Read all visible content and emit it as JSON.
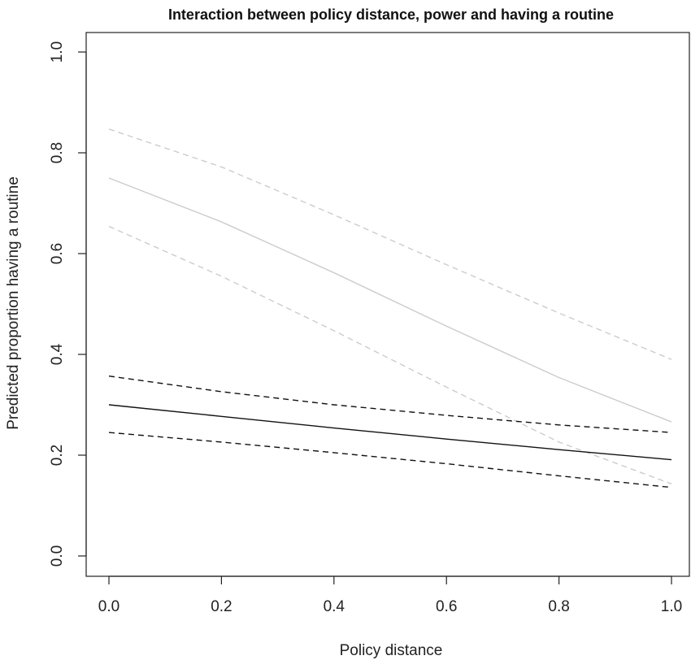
{
  "chart_data": {
    "type": "line",
    "title": "Interaction between policy distance, power and having a routine",
    "xlabel": "Policy distance",
    "ylabel": "Predicted proportion having a routine",
    "xlim": [
      0.0,
      1.0
    ],
    "ylim": [
      0.0,
      1.0
    ],
    "xticks": [
      "0.0",
      "0.2",
      "0.4",
      "0.6",
      "0.8",
      "1.0"
    ],
    "yticks": [
      "0.0",
      "0.2",
      "0.4",
      "0.6",
      "0.8",
      "1.0"
    ],
    "grid": false,
    "legend": "none",
    "x": [
      0.0,
      0.2,
      0.4,
      0.6,
      0.8,
      1.0
    ],
    "series": [
      {
        "color": "#cccccc",
        "style": "solid",
        "values": [
          0.75,
          0.663,
          0.562,
          0.456,
          0.354,
          0.266
        ]
      },
      {
        "color": "#cccccc",
        "style": "dashed",
        "values": [
          0.847,
          0.772,
          0.677,
          0.578,
          0.482,
          0.39
        ]
      },
      {
        "color": "#cccccc",
        "style": "dashed",
        "values": [
          0.654,
          0.555,
          0.447,
          0.335,
          0.226,
          0.143
        ]
      },
      {
        "color": "#111111",
        "style": "solid",
        "values": [
          0.3,
          0.277,
          0.254,
          0.232,
          0.211,
          0.191
        ]
      },
      {
        "color": "#111111",
        "style": "dashed",
        "values": [
          0.357,
          0.326,
          0.3,
          0.279,
          0.26,
          0.245
        ]
      },
      {
        "color": "#111111",
        "style": "dashed",
        "values": [
          0.245,
          0.226,
          0.205,
          0.183,
          0.159,
          0.136
        ]
      }
    ]
  }
}
